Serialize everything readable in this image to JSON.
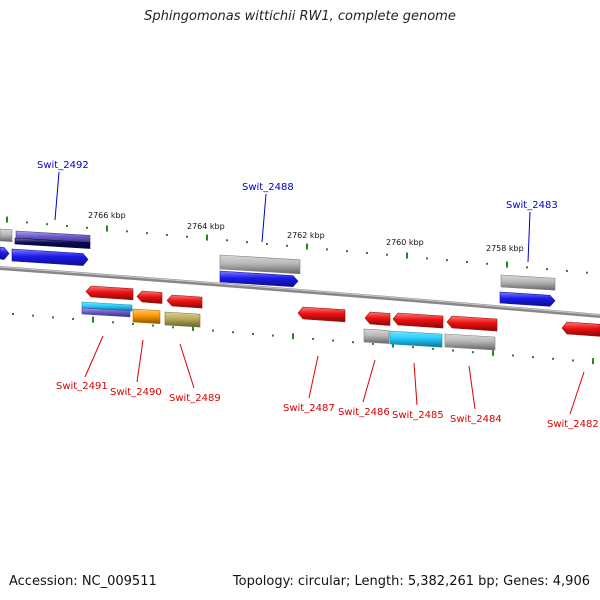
{
  "title": "Sphingomonas wittichii RW1, complete genome",
  "footer": {
    "accession": "Accession: NC_009511",
    "summary": "Topology: circular; Length: 5,382,261 bp; Genes: 4,906"
  },
  "colors": {
    "forward_label": "#0000cc",
    "reverse_label": "#dd0000",
    "tick": "#228822",
    "backbone": "#888888"
  },
  "scale_labels": [
    "2766 kbp",
    "2764 kbp",
    "2762 kbp",
    "2760 kbp",
    "2758 kbp"
  ],
  "forward_genes": [
    "Swit_2492",
    "Swit_2488",
    "Swit_2483"
  ],
  "reverse_genes": [
    "Swit_2491",
    "Swit_2490",
    "Swit_2489",
    "Swit_2487",
    "Swit_2486",
    "Swit_2485",
    "Swit_2484",
    "Swit_2482"
  ],
  "gene_colors": {
    "forward": "#1a1aee",
    "reverse": "#ee1111",
    "slate": "#6a5acd",
    "navy": "#0a0a55",
    "cyan": "#22ccff",
    "orange": "#ff9900",
    "khaki": "#b8ab55",
    "gray": "#b8b8b8"
  }
}
